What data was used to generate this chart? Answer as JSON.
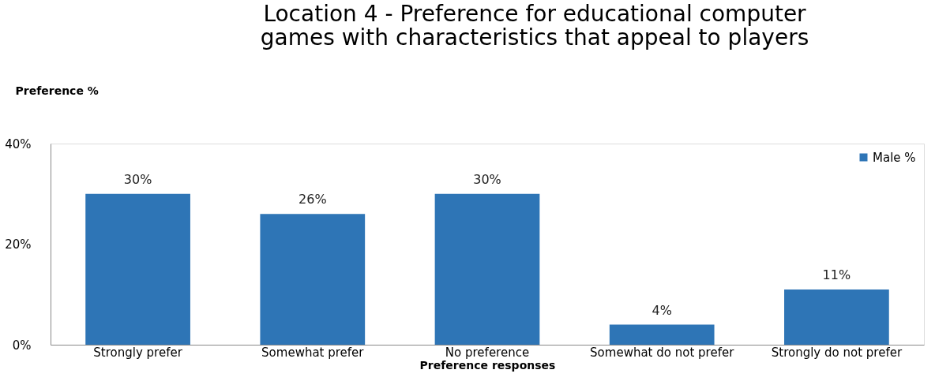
{
  "chart_data": {
    "type": "bar",
    "title": "Location 4 - Preference for educational computer games with characteristics that appeal to players",
    "xlabel": "Preference responses",
    "ylabel": "Preference %",
    "categories": [
      "Strongly prefer",
      "Somewhat prefer",
      "No preference",
      "Somewhat do not prefer",
      "Strongly do not prefer"
    ],
    "series": [
      {
        "name": "Male %",
        "color": "#2e75b6",
        "values": [
          30,
          26,
          30,
          4,
          11
        ],
        "value_labels": [
          "30%",
          "26%",
          "30%",
          "4%",
          "11%"
        ]
      }
    ],
    "ylim": [
      0,
      40
    ],
    "yticks": [
      {
        "value": 0,
        "label": "0%"
      },
      {
        "value": 20,
        "label": "20%"
      },
      {
        "value": 40,
        "label": "40%"
      }
    ],
    "grid": false,
    "legend": "top right"
  }
}
